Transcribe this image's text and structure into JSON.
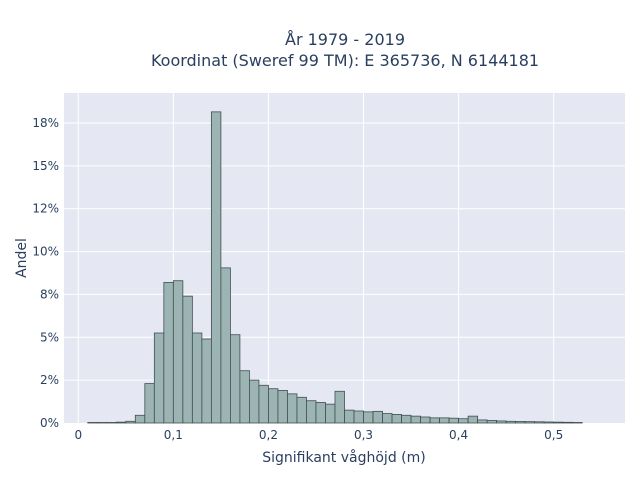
{
  "chart_data": {
    "type": "bar",
    "title_line1": "År 1979 - 2019",
    "title_line2": "Koordinat (Sweref 99 TM): E 365736, N 6144181",
    "xlabel": "Signifikant våghöjd (m)",
    "ylabel": "Andel",
    "xlim": [
      -0.015,
      0.575
    ],
    "ylim": [
      0,
      0.1925
    ],
    "x_ticks": [
      {
        "value": 0,
        "label": "0"
      },
      {
        "value": 0.1,
        "label": "0,1"
      },
      {
        "value": 0.2,
        "label": "0,2"
      },
      {
        "value": 0.3,
        "label": "0,3"
      },
      {
        "value": 0.4,
        "label": "0,4"
      },
      {
        "value": 0.5,
        "label": "0,5"
      }
    ],
    "y_ticks": [
      {
        "value": 0,
        "label": "0%"
      },
      {
        "value": 0.025,
        "label": "2%"
      },
      {
        "value": 0.05,
        "label": "5%"
      },
      {
        "value": 0.075,
        "label": "8%"
      },
      {
        "value": 0.1,
        "label": "10%"
      },
      {
        "value": 0.125,
        "label": "12%"
      },
      {
        "value": 0.15,
        "label": "15%"
      },
      {
        "value": 0.175,
        "label": "18%"
      }
    ],
    "bin_width": 0.01,
    "bin_starts": [
      0.01,
      0.02,
      0.03,
      0.04,
      0.05,
      0.06,
      0.07,
      0.08,
      0.09,
      0.1,
      0.11,
      0.12,
      0.13,
      0.14,
      0.15,
      0.16,
      0.17,
      0.18,
      0.19,
      0.2,
      0.21,
      0.22,
      0.23,
      0.24,
      0.25,
      0.26,
      0.27,
      0.28,
      0.29,
      0.3,
      0.31,
      0.32,
      0.33,
      0.34,
      0.35,
      0.36,
      0.37,
      0.38,
      0.39,
      0.4,
      0.41,
      0.42,
      0.43,
      0.44,
      0.45,
      0.46,
      0.47,
      0.48,
      0.49,
      0.5,
      0.51,
      0.52
    ],
    "values": [
      0.0003,
      0.0003,
      0.0003,
      0.0005,
      0.001,
      0.0045,
      0.023,
      0.0525,
      0.082,
      0.083,
      0.074,
      0.0525,
      0.049,
      0.1815,
      0.0905,
      0.0515,
      0.0305,
      0.025,
      0.022,
      0.02,
      0.019,
      0.017,
      0.015,
      0.013,
      0.012,
      0.011,
      0.0185,
      0.0075,
      0.007,
      0.0065,
      0.0068,
      0.0055,
      0.005,
      0.0045,
      0.004,
      0.0035,
      0.003,
      0.003,
      0.0028,
      0.0025,
      0.004,
      0.0018,
      0.0015,
      0.0012,
      0.001,
      0.0009,
      0.0008,
      0.0007,
      0.0006,
      0.0005,
      0.0004,
      0.0003
    ],
    "bar_color": "#9db4b4",
    "bar_edge_color": "#3f4f4f",
    "plot_bg": "#e5e8f2",
    "grid": true
  }
}
